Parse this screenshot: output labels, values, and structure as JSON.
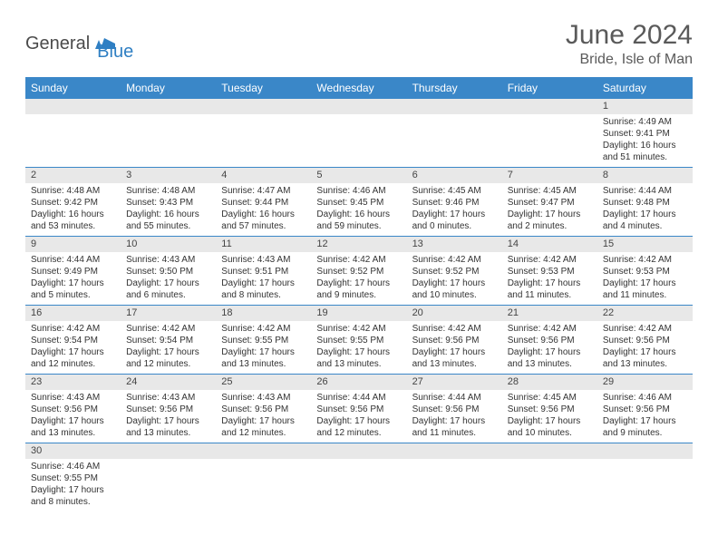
{
  "logo": {
    "text1": "General",
    "text2": "Blue"
  },
  "title": "June 2024",
  "subtitle": "Bride, Isle of Man",
  "colors": {
    "header_bg": "#3a87c8",
    "header_text": "#ffffff",
    "dayhead_bg": "#e8e8e8",
    "border": "#3a87c8",
    "logo_gray": "#4b4b4b",
    "logo_blue": "#2f7fc3"
  },
  "weekdays": [
    "Sunday",
    "Monday",
    "Tuesday",
    "Wednesday",
    "Thursday",
    "Friday",
    "Saturday"
  ],
  "weeks": [
    [
      null,
      null,
      null,
      null,
      null,
      null,
      {
        "n": "1",
        "sr": "Sunrise: 4:49 AM",
        "ss": "Sunset: 9:41 PM",
        "dl": "Daylight: 16 hours and 51 minutes."
      }
    ],
    [
      {
        "n": "2",
        "sr": "Sunrise: 4:48 AM",
        "ss": "Sunset: 9:42 PM",
        "dl": "Daylight: 16 hours and 53 minutes."
      },
      {
        "n": "3",
        "sr": "Sunrise: 4:48 AM",
        "ss": "Sunset: 9:43 PM",
        "dl": "Daylight: 16 hours and 55 minutes."
      },
      {
        "n": "4",
        "sr": "Sunrise: 4:47 AM",
        "ss": "Sunset: 9:44 PM",
        "dl": "Daylight: 16 hours and 57 minutes."
      },
      {
        "n": "5",
        "sr": "Sunrise: 4:46 AM",
        "ss": "Sunset: 9:45 PM",
        "dl": "Daylight: 16 hours and 59 minutes."
      },
      {
        "n": "6",
        "sr": "Sunrise: 4:45 AM",
        "ss": "Sunset: 9:46 PM",
        "dl": "Daylight: 17 hours and 0 minutes."
      },
      {
        "n": "7",
        "sr": "Sunrise: 4:45 AM",
        "ss": "Sunset: 9:47 PM",
        "dl": "Daylight: 17 hours and 2 minutes."
      },
      {
        "n": "8",
        "sr": "Sunrise: 4:44 AM",
        "ss": "Sunset: 9:48 PM",
        "dl": "Daylight: 17 hours and 4 minutes."
      }
    ],
    [
      {
        "n": "9",
        "sr": "Sunrise: 4:44 AM",
        "ss": "Sunset: 9:49 PM",
        "dl": "Daylight: 17 hours and 5 minutes."
      },
      {
        "n": "10",
        "sr": "Sunrise: 4:43 AM",
        "ss": "Sunset: 9:50 PM",
        "dl": "Daylight: 17 hours and 6 minutes."
      },
      {
        "n": "11",
        "sr": "Sunrise: 4:43 AM",
        "ss": "Sunset: 9:51 PM",
        "dl": "Daylight: 17 hours and 8 minutes."
      },
      {
        "n": "12",
        "sr": "Sunrise: 4:42 AM",
        "ss": "Sunset: 9:52 PM",
        "dl": "Daylight: 17 hours and 9 minutes."
      },
      {
        "n": "13",
        "sr": "Sunrise: 4:42 AM",
        "ss": "Sunset: 9:52 PM",
        "dl": "Daylight: 17 hours and 10 minutes."
      },
      {
        "n": "14",
        "sr": "Sunrise: 4:42 AM",
        "ss": "Sunset: 9:53 PM",
        "dl": "Daylight: 17 hours and 11 minutes."
      },
      {
        "n": "15",
        "sr": "Sunrise: 4:42 AM",
        "ss": "Sunset: 9:53 PM",
        "dl": "Daylight: 17 hours and 11 minutes."
      }
    ],
    [
      {
        "n": "16",
        "sr": "Sunrise: 4:42 AM",
        "ss": "Sunset: 9:54 PM",
        "dl": "Daylight: 17 hours and 12 minutes."
      },
      {
        "n": "17",
        "sr": "Sunrise: 4:42 AM",
        "ss": "Sunset: 9:54 PM",
        "dl": "Daylight: 17 hours and 12 minutes."
      },
      {
        "n": "18",
        "sr": "Sunrise: 4:42 AM",
        "ss": "Sunset: 9:55 PM",
        "dl": "Daylight: 17 hours and 13 minutes."
      },
      {
        "n": "19",
        "sr": "Sunrise: 4:42 AM",
        "ss": "Sunset: 9:55 PM",
        "dl": "Daylight: 17 hours and 13 minutes."
      },
      {
        "n": "20",
        "sr": "Sunrise: 4:42 AM",
        "ss": "Sunset: 9:56 PM",
        "dl": "Daylight: 17 hours and 13 minutes."
      },
      {
        "n": "21",
        "sr": "Sunrise: 4:42 AM",
        "ss": "Sunset: 9:56 PM",
        "dl": "Daylight: 17 hours and 13 minutes."
      },
      {
        "n": "22",
        "sr": "Sunrise: 4:42 AM",
        "ss": "Sunset: 9:56 PM",
        "dl": "Daylight: 17 hours and 13 minutes."
      }
    ],
    [
      {
        "n": "23",
        "sr": "Sunrise: 4:43 AM",
        "ss": "Sunset: 9:56 PM",
        "dl": "Daylight: 17 hours and 13 minutes."
      },
      {
        "n": "24",
        "sr": "Sunrise: 4:43 AM",
        "ss": "Sunset: 9:56 PM",
        "dl": "Daylight: 17 hours and 13 minutes."
      },
      {
        "n": "25",
        "sr": "Sunrise: 4:43 AM",
        "ss": "Sunset: 9:56 PM",
        "dl": "Daylight: 17 hours and 12 minutes."
      },
      {
        "n": "26",
        "sr": "Sunrise: 4:44 AM",
        "ss": "Sunset: 9:56 PM",
        "dl": "Daylight: 17 hours and 12 minutes."
      },
      {
        "n": "27",
        "sr": "Sunrise: 4:44 AM",
        "ss": "Sunset: 9:56 PM",
        "dl": "Daylight: 17 hours and 11 minutes."
      },
      {
        "n": "28",
        "sr": "Sunrise: 4:45 AM",
        "ss": "Sunset: 9:56 PM",
        "dl": "Daylight: 17 hours and 10 minutes."
      },
      {
        "n": "29",
        "sr": "Sunrise: 4:46 AM",
        "ss": "Sunset: 9:56 PM",
        "dl": "Daylight: 17 hours and 9 minutes."
      }
    ],
    [
      {
        "n": "30",
        "sr": "Sunrise: 4:46 AM",
        "ss": "Sunset: 9:55 PM",
        "dl": "Daylight: 17 hours and 8 minutes."
      },
      null,
      null,
      null,
      null,
      null,
      null
    ]
  ]
}
